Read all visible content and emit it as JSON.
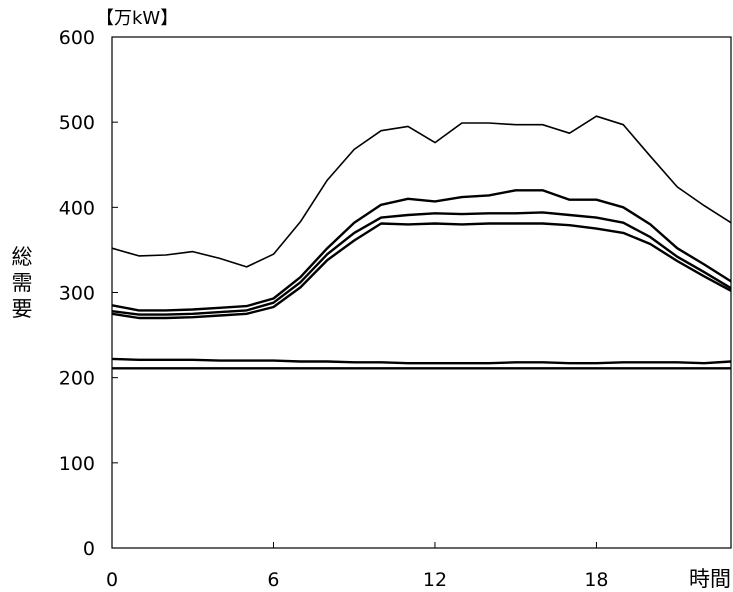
{
  "chart_data": {
    "type": "line",
    "unit_label": "【万kW】",
    "ylabel": "総需要",
    "xlabel": "時間",
    "x_ticks": [
      0,
      6,
      12,
      18
    ],
    "y_ticks": [
      0,
      100,
      200,
      300,
      400,
      500,
      600
    ],
    "xlim": [
      0,
      23
    ],
    "ylim": [
      0,
      600
    ],
    "grid": false,
    "series": [
      {
        "x": [
          0,
          1,
          2,
          3,
          4,
          5,
          6,
          7,
          8,
          9,
          10,
          11,
          12,
          13,
          14,
          15,
          16,
          17,
          18,
          19,
          20,
          21,
          22,
          23
        ],
        "values": [
          352,
          343,
          344,
          348,
          340,
          330,
          345,
          383,
          432,
          468,
          490,
          495,
          476,
          499,
          499,
          497,
          497,
          487,
          507,
          497,
          460,
          424,
          402,
          382
        ],
        "stroke_width": 1.6
      },
      {
        "x": [
          0,
          1,
          2,
          3,
          4,
          5,
          6,
          7,
          8,
          9,
          10,
          11,
          12,
          13,
          14,
          15,
          16,
          17,
          18,
          19,
          20,
          21,
          22,
          23
        ],
        "values": [
          285,
          279,
          279,
          280,
          282,
          284,
          293,
          318,
          352,
          382,
          403,
          410,
          407,
          412,
          414,
          420,
          420,
          409,
          409,
          400,
          380,
          352,
          333,
          313
        ],
        "stroke_width": 2.4
      },
      {
        "x": [
          0,
          1,
          2,
          3,
          4,
          5,
          6,
          7,
          8,
          9,
          10,
          11,
          12,
          13,
          14,
          15,
          16,
          17,
          18,
          19,
          20,
          21,
          22,
          23
        ],
        "values": [
          278,
          274,
          274,
          275,
          277,
          279,
          288,
          312,
          345,
          370,
          388,
          391,
          393,
          392,
          393,
          393,
          394,
          391,
          388,
          382,
          365,
          342,
          324,
          305
        ],
        "stroke_width": 2.4
      },
      {
        "x": [
          0,
          1,
          2,
          3,
          4,
          5,
          6,
          7,
          8,
          9,
          10,
          11,
          12,
          13,
          14,
          15,
          16,
          17,
          18,
          19,
          20,
          21,
          22,
          23
        ],
        "values": [
          275,
          270,
          270,
          271,
          273,
          275,
          283,
          306,
          338,
          361,
          381,
          380,
          381,
          380,
          381,
          381,
          381,
          379,
          375,
          370,
          357,
          337,
          319,
          302
        ],
        "stroke_width": 2.4
      },
      {
        "x": [
          0,
          1,
          2,
          3,
          4,
          5,
          6,
          7,
          8,
          9,
          10,
          11,
          12,
          13,
          14,
          15,
          16,
          17,
          18,
          19,
          20,
          21,
          22,
          23
        ],
        "values": [
          222,
          221,
          221,
          221,
          220,
          220,
          220,
          219,
          219,
          218,
          218,
          217,
          217,
          217,
          217,
          218,
          218,
          217,
          217,
          218,
          218,
          218,
          217,
          219
        ],
        "stroke_width": 2.4
      },
      {
        "x": [
          0,
          1,
          2,
          3,
          4,
          5,
          6,
          7,
          8,
          9,
          10,
          11,
          12,
          13,
          14,
          15,
          16,
          17,
          18,
          19,
          20,
          21,
          22,
          23
        ],
        "values": [
          211,
          211,
          211,
          211,
          211,
          211,
          211,
          211,
          211,
          211,
          211,
          211,
          211,
          211,
          211,
          211,
          211,
          211,
          211,
          211,
          211,
          211,
          211,
          211
        ],
        "stroke_width": 2.4
      }
    ]
  }
}
